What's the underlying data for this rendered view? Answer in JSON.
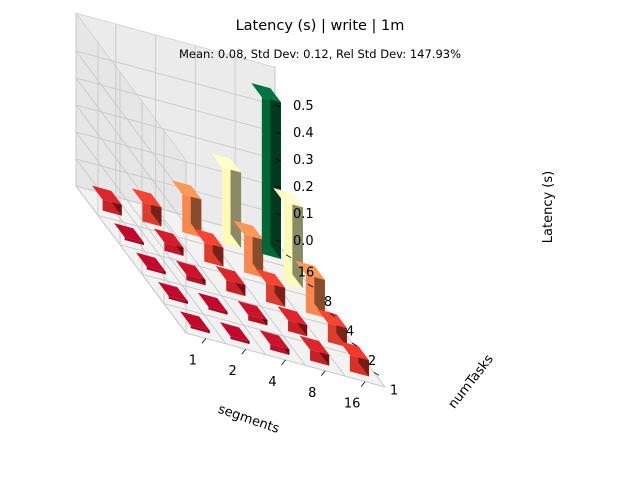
{
  "chart_data": {
    "type": "bar3d",
    "title": "Latency (s) | write | 1m",
    "subtitle": "Mean: 0.08, Std Dev: 0.12, Rel Std Dev: 147.93%",
    "xlabel": "segments",
    "ylabel": "numTasks",
    "zlabel": "Latency (s)",
    "x_categories": [
      "1",
      "2",
      "4",
      "8",
      "16"
    ],
    "y_categories": [
      "1",
      "2",
      "4",
      "8",
      "16"
    ],
    "z_ticks": [
      "0.0",
      "0.1",
      "0.2",
      "0.3",
      "0.4",
      "0.5"
    ],
    "zlim": [
      0,
      0.55
    ],
    "grid": true,
    "colormap": "RdYlGn",
    "values": [
      [
        0.01,
        0.01,
        0.02,
        0.04,
        0.06
      ],
      [
        0.01,
        0.01,
        0.02,
        0.04,
        0.07
      ],
      [
        0.01,
        0.02,
        0.04,
        0.07,
        0.14
      ],
      [
        0.01,
        0.03,
        0.07,
        0.14,
        0.3
      ],
      [
        0.04,
        0.07,
        0.14,
        0.28,
        0.58
      ]
    ]
  }
}
